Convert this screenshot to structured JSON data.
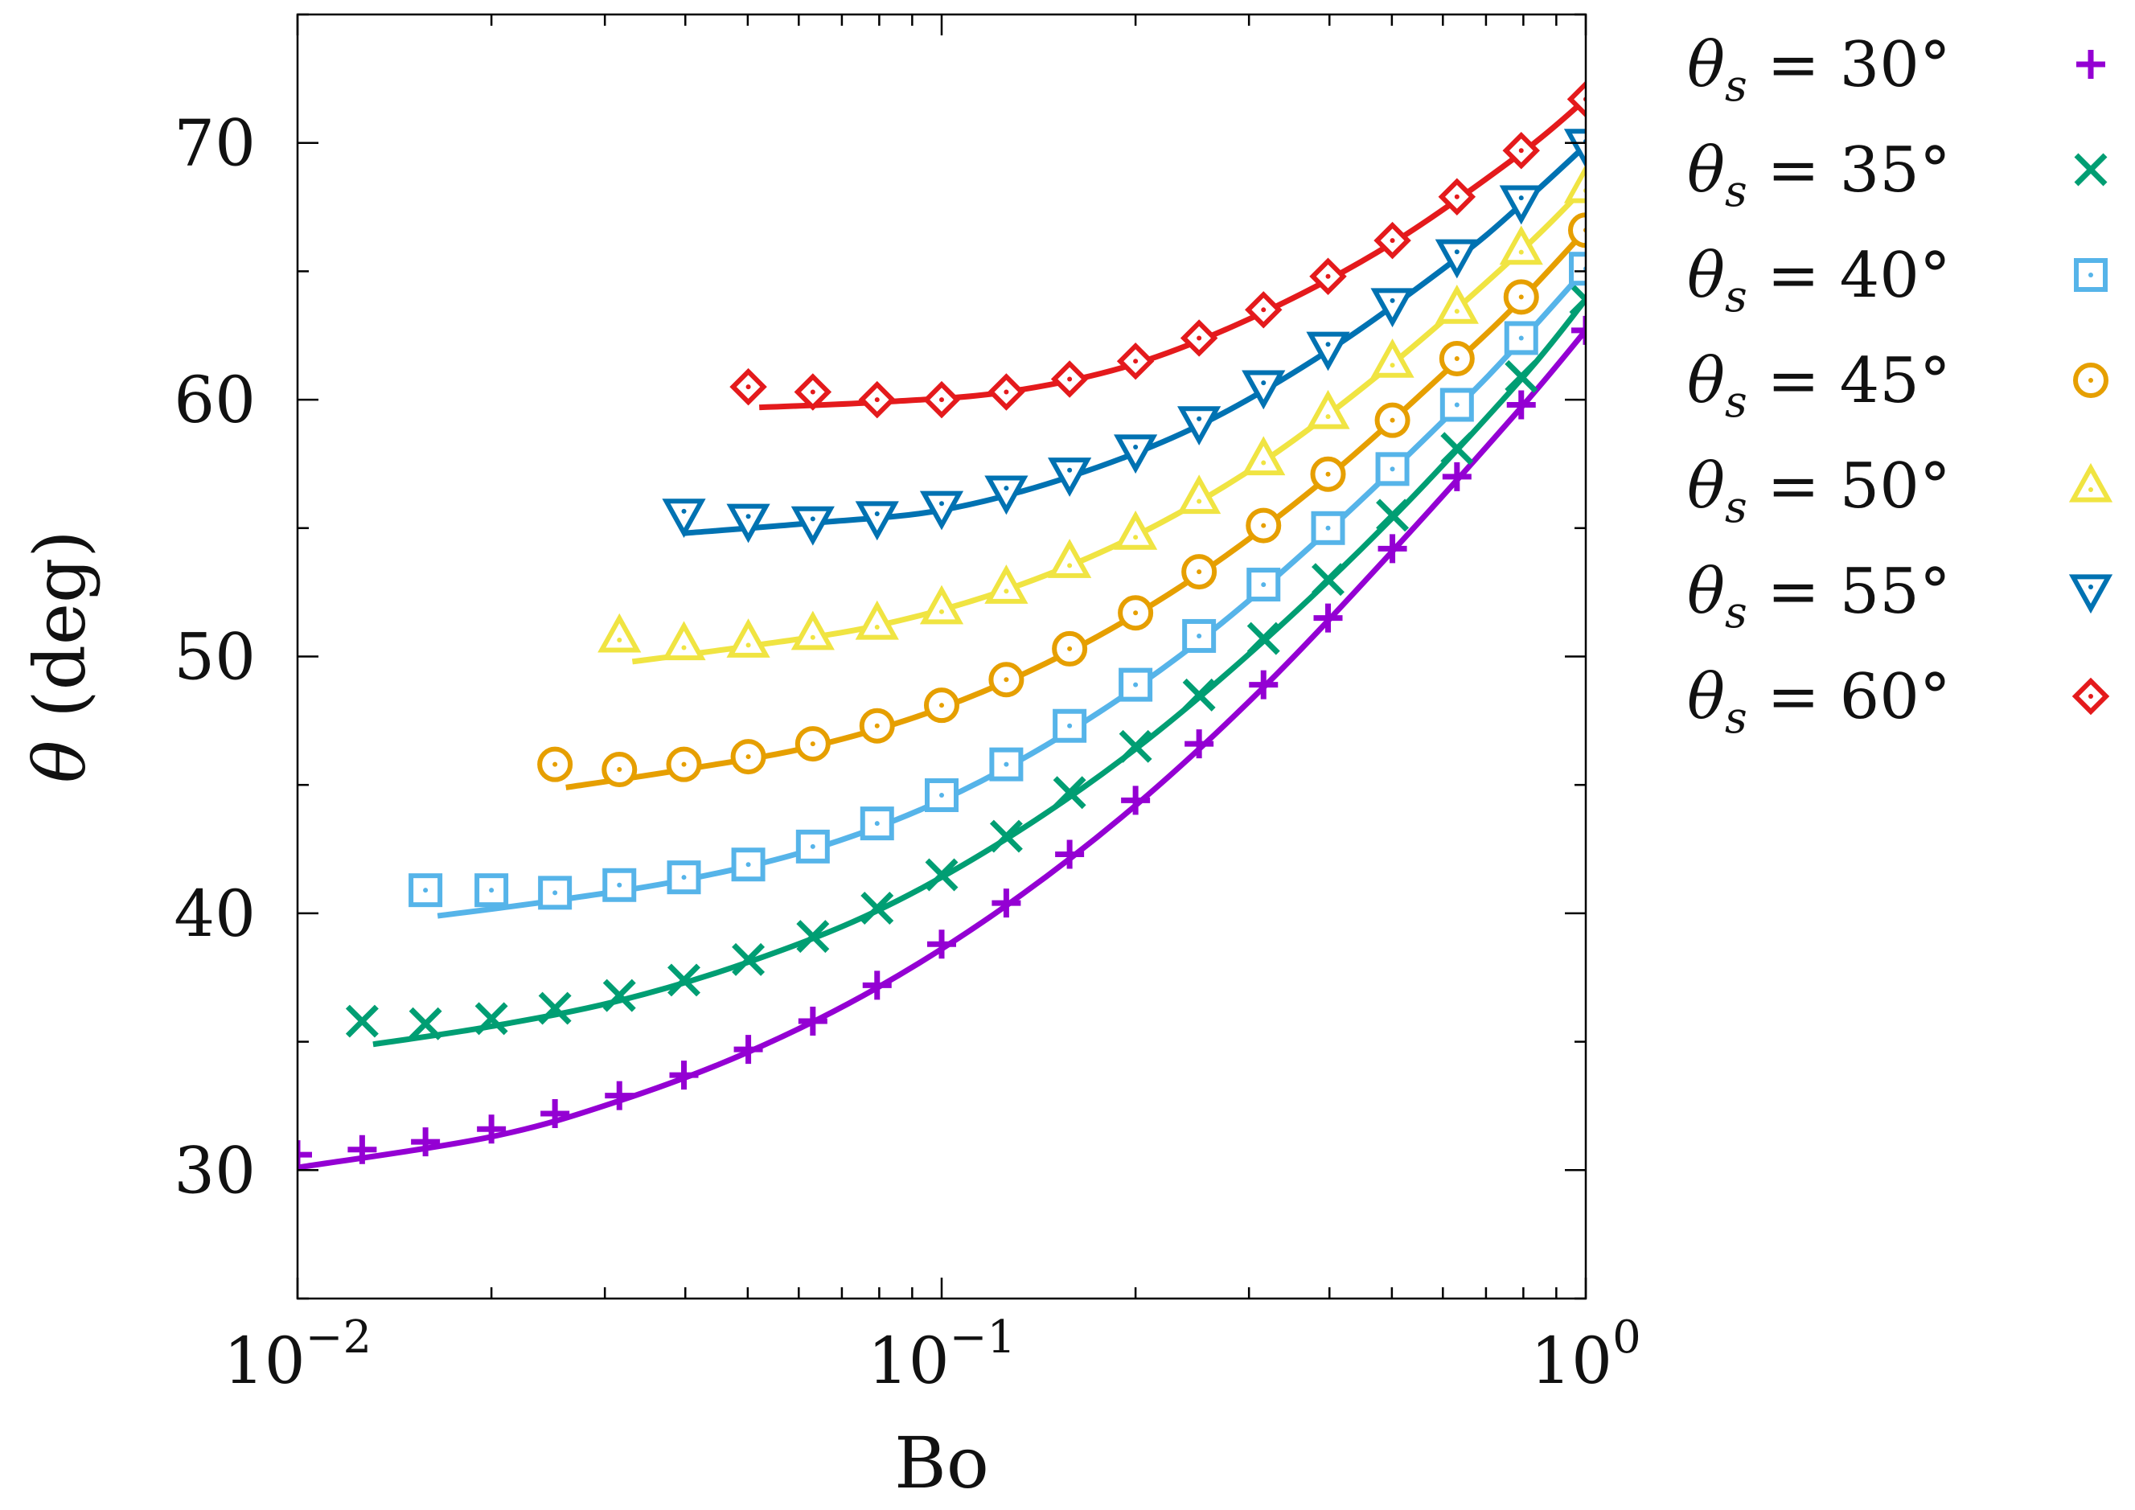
{
  "chart_data": {
    "type": "scatter",
    "xlabel": "Bo",
    "ylabel_symbol": "θ",
    "ylabel_unit": "(deg)",
    "xscale": "log",
    "xlim": [
      0.01,
      1.0
    ],
    "ylim": [
      25,
      75
    ],
    "x_ticks": [
      {
        "value": 0.01,
        "base": "10",
        "exp": "−2"
      },
      {
        "value": 0.1,
        "base": "10",
        "exp": "−1"
      },
      {
        "value": 1.0,
        "base": "10",
        "exp": "0"
      }
    ],
    "y_ticks": [
      {
        "value": 30,
        "label": "30"
      },
      {
        "value": 40,
        "label": "40"
      },
      {
        "value": 50,
        "label": "50"
      },
      {
        "value": 60,
        "label": "60"
      },
      {
        "value": 70,
        "label": "70"
      }
    ],
    "grid": false,
    "legend_position": "right-outside",
    "series": [
      {
        "name": "θs = 30°",
        "legend_sym": "θ",
        "legend_sub": "s",
        "legend_rest": " = 30°",
        "color": "#9400d3",
        "marker": "plus",
        "x": [
          0.01,
          0.0126,
          0.0158,
          0.02,
          0.0251,
          0.0316,
          0.0398,
          0.0501,
          0.0631,
          0.0794,
          0.1,
          0.126,
          0.158,
          0.2,
          0.251,
          0.316,
          0.398,
          0.501,
          0.631,
          0.794,
          1.0
        ],
        "y": [
          30.6,
          30.8,
          31.1,
          31.6,
          32.2,
          32.9,
          33.7,
          34.7,
          35.8,
          37.2,
          38.8,
          40.4,
          42.3,
          44.4,
          46.6,
          48.9,
          51.5,
          54.2,
          57.0,
          59.8,
          62.7
        ],
        "fit": [
          [
            0.01,
            30.1
          ],
          [
            0.02,
            31.3
          ],
          [
            0.0316,
            32.7
          ],
          [
            0.0501,
            34.6
          ],
          [
            0.0794,
            37.1
          ],
          [
            0.126,
            40.3
          ],
          [
            0.2,
            44.2
          ],
          [
            0.316,
            48.8
          ],
          [
            0.501,
            54.1
          ],
          [
            0.794,
            59.7
          ],
          [
            1.0,
            62.7
          ]
        ]
      },
      {
        "name": "θs = 35°",
        "legend_sym": "θ",
        "legend_sub": "s",
        "legend_rest": " = 35°",
        "color": "#009e73",
        "marker": "cross",
        "x": [
          0.0126,
          0.0158,
          0.02,
          0.0251,
          0.0316,
          0.0398,
          0.0501,
          0.0631,
          0.0794,
          0.1,
          0.126,
          0.158,
          0.2,
          0.251,
          0.316,
          0.398,
          0.501,
          0.631,
          0.794,
          1.0
        ],
        "y": [
          35.8,
          35.7,
          35.9,
          36.3,
          36.8,
          37.4,
          38.2,
          39.1,
          40.2,
          41.5,
          43.0,
          44.7,
          46.5,
          48.5,
          50.7,
          53.0,
          55.5,
          58.1,
          60.9,
          63.9
        ],
        "fit": [
          [
            0.0131,
            34.9
          ],
          [
            0.02,
            35.6
          ],
          [
            0.0316,
            36.6
          ],
          [
            0.0501,
            38.1
          ],
          [
            0.0794,
            40.1
          ],
          [
            0.126,
            42.9
          ],
          [
            0.2,
            46.4
          ],
          [
            0.316,
            50.6
          ],
          [
            0.501,
            55.4
          ],
          [
            0.794,
            60.8
          ],
          [
            1.0,
            63.9
          ]
        ]
      },
      {
        "name": "θs = 40°",
        "legend_sym": "θ",
        "legend_sub": "s",
        "legend_rest": " = 40°",
        "color": "#56b4e9",
        "marker": "square",
        "x": [
          0.0158,
          0.02,
          0.0251,
          0.0316,
          0.0398,
          0.0501,
          0.0631,
          0.0794,
          0.1,
          0.126,
          0.158,
          0.2,
          0.251,
          0.316,
          0.398,
          0.501,
          0.631,
          0.794,
          1.0
        ],
        "y": [
          40.9,
          40.9,
          40.8,
          41.1,
          41.4,
          41.9,
          42.6,
          43.5,
          44.6,
          45.8,
          47.3,
          48.9,
          50.8,
          52.8,
          55.0,
          57.3,
          59.8,
          62.4,
          65.1
        ],
        "fit": [
          [
            0.0165,
            39.9
          ],
          [
            0.0251,
            40.5
          ],
          [
            0.0398,
            41.3
          ],
          [
            0.0631,
            42.5
          ],
          [
            0.1,
            44.4
          ],
          [
            0.158,
            47.1
          ],
          [
            0.251,
            50.6
          ],
          [
            0.398,
            54.9
          ],
          [
            0.631,
            59.7
          ],
          [
            0.794,
            62.3
          ],
          [
            1.0,
            65.1
          ]
        ]
      },
      {
        "name": "θs = 45°",
        "legend_sym": "θ",
        "legend_sub": "s",
        "legend_rest": " = 45°",
        "color": "#e69f00",
        "marker": "circle",
        "x": [
          0.0251,
          0.0316,
          0.0398,
          0.0501,
          0.0631,
          0.0794,
          0.1,
          0.126,
          0.158,
          0.2,
          0.251,
          0.316,
          0.398,
          0.501,
          0.631,
          0.794,
          1.0
        ],
        "y": [
          45.8,
          45.6,
          45.8,
          46.1,
          46.6,
          47.3,
          48.1,
          49.1,
          50.3,
          51.7,
          53.3,
          55.1,
          57.1,
          59.2,
          61.6,
          64.0,
          66.6
        ],
        "fit": [
          [
            0.0261,
            44.9
          ],
          [
            0.0398,
            45.6
          ],
          [
            0.0631,
            46.5
          ],
          [
            0.1,
            48.0
          ],
          [
            0.158,
            50.2
          ],
          [
            0.251,
            53.2
          ],
          [
            0.398,
            57.0
          ],
          [
            0.631,
            61.5
          ],
          [
            0.794,
            63.9
          ],
          [
            1.0,
            66.6
          ]
        ]
      },
      {
        "name": "θs = 50°",
        "legend_sym": "θ",
        "legend_sub": "s",
        "legend_rest": " = 50°",
        "color": "#f0e442",
        "marker": "triangle-up",
        "x": [
          0.0316,
          0.0398,
          0.0501,
          0.0631,
          0.0794,
          0.1,
          0.126,
          0.158,
          0.2,
          0.251,
          0.316,
          0.398,
          0.501,
          0.631,
          0.794,
          1.0
        ],
        "y": [
          50.8,
          50.5,
          50.6,
          50.9,
          51.3,
          51.9,
          52.7,
          53.7,
          54.8,
          56.2,
          57.7,
          59.5,
          61.5,
          63.6,
          65.9,
          68.3
        ],
        "fit": [
          [
            0.0331,
            49.8
          ],
          [
            0.0501,
            50.4
          ],
          [
            0.0794,
            51.2
          ],
          [
            0.126,
            52.6
          ],
          [
            0.2,
            54.7
          ],
          [
            0.316,
            57.6
          ],
          [
            0.501,
            61.4
          ],
          [
            0.794,
            65.8
          ],
          [
            1.0,
            68.3
          ]
        ]
      },
      {
        "name": "θs = 55°",
        "legend_sym": "θ",
        "legend_sub": "s",
        "legend_rest": " = 55°",
        "color": "#0072b2",
        "marker": "triangle-down",
        "x": [
          0.0398,
          0.0501,
          0.0631,
          0.0794,
          0.1,
          0.126,
          0.158,
          0.2,
          0.251,
          0.316,
          0.398,
          0.501,
          0.631,
          0.794,
          1.0
        ],
        "y": [
          55.5,
          55.3,
          55.2,
          55.4,
          55.8,
          56.4,
          57.1,
          58.0,
          59.1,
          60.5,
          62.0,
          63.7,
          65.6,
          67.7,
          69.9
        ],
        "fit": [
          [
            0.0398,
            54.8
          ],
          [
            0.0631,
            55.2
          ],
          [
            0.1,
            55.7
          ],
          [
            0.158,
            57.0
          ],
          [
            0.251,
            59.0
          ],
          [
            0.398,
            61.9
          ],
          [
            0.631,
            65.5
          ],
          [
            0.794,
            67.6
          ],
          [
            1.0,
            69.9
          ]
        ]
      },
      {
        "name": "θs = 60°",
        "legend_sym": "θ",
        "legend_sub": "s",
        "legend_rest": " = 60°",
        "color": "#e41a1c",
        "marker": "diamond",
        "x": [
          0.0501,
          0.0631,
          0.0794,
          0.1,
          0.126,
          0.158,
          0.2,
          0.251,
          0.316,
          0.398,
          0.501,
          0.631,
          0.794,
          1.0
        ],
        "y": [
          60.5,
          60.3,
          60.0,
          60.0,
          60.3,
          60.8,
          61.5,
          62.4,
          63.5,
          64.8,
          66.2,
          67.9,
          69.7,
          71.7
        ],
        "fit": [
          [
            0.0521,
            59.7
          ],
          [
            0.0794,
            59.9
          ],
          [
            0.126,
            60.3
          ],
          [
            0.2,
            61.4
          ],
          [
            0.316,
            63.4
          ],
          [
            0.501,
            66.1
          ],
          [
            0.794,
            69.6
          ],
          [
            1.0,
            71.7
          ]
        ]
      }
    ]
  }
}
